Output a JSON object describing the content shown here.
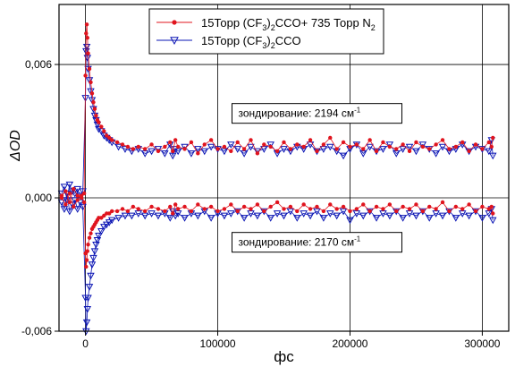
{
  "chart_data": {
    "type": "line",
    "xlabel": "фс",
    "ylabel": "ΔOD",
    "xlim": [
      -20000,
      320000
    ],
    "ylim": [
      -0.006,
      0.0087
    ],
    "x_ticks": [
      0,
      100000,
      200000,
      300000
    ],
    "x_tick_labels": [
      "0",
      "100000",
      "200000",
      "300000"
    ],
    "y_ticks": [
      -0.006,
      0.0,
      0.006
    ],
    "y_tick_labels": [
      "-0,006",
      "0,000",
      "0,006"
    ],
    "grid": true,
    "legend_position": "top-center",
    "legend": [
      {
        "pre": "15Торр (CF",
        "sub1": "3",
        "mid": ")",
        "sub2": "2",
        "post": "CCO+ 735 Торр N",
        "sub3": "2",
        "color": "#e0141e",
        "marker": "circle"
      },
      {
        "pre": "15Торр (CF",
        "sub1": "3",
        "mid": ")",
        "sub2": "2",
        "post": "CCO",
        "sub3": "",
        "color": "#0a14b4",
        "marker": "triangle-down"
      }
    ],
    "annotations": [
      {
        "text": "зондирование: 2194 см",
        "sup": "-1",
        "x": 175000,
        "y": 0.0038
      },
      {
        "text": "зондирование: 2170 см",
        "sup": "-1",
        "x": 175000,
        "y": -0.002
      }
    ],
    "series": [
      {
        "name": "15Торр (CF3)2CCO+ 735 Торр N2, 2194",
        "color": "#e0141e",
        "marker": "circle",
        "x": [
          -18000,
          -15000,
          -12000,
          -9000,
          -6000,
          -3000,
          -1000,
          0,
          500,
          1000,
          1500,
          2000,
          3000,
          4000,
          5000,
          6000,
          7000,
          8000,
          9000,
          10000,
          12000,
          14000,
          16000,
          18000,
          20000,
          24000,
          28000,
          32000,
          36000,
          40000,
          45000,
          50000,
          55000,
          60000,
          64000,
          66000,
          68000,
          70000,
          75000,
          80000,
          85000,
          90000,
          95000,
          100000,
          105000,
          110000,
          115000,
          120000,
          125000,
          130000,
          135000,
          140000,
          145000,
          150000,
          155000,
          160000,
          165000,
          170000,
          175000,
          180000,
          185000,
          190000,
          195000,
          200000,
          205000,
          210000,
          215000,
          220000,
          225000,
          230000,
          235000,
          240000,
          245000,
          250000,
          255000,
          260000,
          265000,
          270000,
          275000,
          280000,
          285000,
          290000,
          295000,
          300000,
          305000,
          307000,
          308000
        ],
        "y": [
          0.0001,
          0.0003,
          -0.0002,
          0.0004,
          0.0001,
          0.0,
          0.0002,
          0.0055,
          0.0074,
          0.0078,
          0.0072,
          0.0065,
          0.0058,
          0.0052,
          0.0047,
          0.0043,
          0.004,
          0.0037,
          0.0035,
          0.0034,
          0.0032,
          0.003,
          0.0028,
          0.0027,
          0.0026,
          0.0025,
          0.0024,
          0.0023,
          0.0022,
          0.0023,
          0.0022,
          0.0024,
          0.0021,
          0.0023,
          0.0025,
          0.0021,
          0.0026,
          0.0023,
          0.0022,
          0.0025,
          0.002,
          0.0024,
          0.0026,
          0.0022,
          0.0023,
          0.0021,
          0.0025,
          0.0022,
          0.0026,
          0.002,
          0.0024,
          0.0023,
          0.0021,
          0.0025,
          0.0022,
          0.0024,
          0.0023,
          0.0026,
          0.0021,
          0.0024,
          0.0027,
          0.0022,
          0.0025,
          0.0023,
          0.0024,
          0.0022,
          0.0026,
          0.0021,
          0.0025,
          0.0023,
          0.0022,
          0.0024,
          0.0021,
          0.0025,
          0.0023,
          0.0022,
          0.0024,
          0.0026,
          0.0022,
          0.0023,
          0.0025,
          0.0021,
          0.0024,
          0.0022,
          0.0025,
          0.0023,
          0.0027
        ]
      },
      {
        "name": "15Торр (CF3)2CCO, 2194",
        "color": "#0a14b4",
        "marker": "triangle-down",
        "x": [
          -18000,
          -16000,
          -14000,
          -12000,
          -10000,
          -8000,
          -6000,
          -4000,
          -2000,
          0,
          500,
          1000,
          1500,
          2000,
          3000,
          4000,
          5000,
          6000,
          7000,
          8000,
          9000,
          10000,
          12000,
          14000,
          16000,
          18000,
          20000,
          25000,
          30000,
          35000,
          40000,
          45000,
          50000,
          55000,
          60000,
          64000,
          66000,
          68000,
          70000,
          75000,
          80000,
          85000,
          90000,
          95000,
          100000,
          105000,
          110000,
          115000,
          120000,
          125000,
          130000,
          135000,
          140000,
          145000,
          150000,
          155000,
          160000,
          165000,
          170000,
          175000,
          180000,
          185000,
          190000,
          195000,
          200000,
          205000,
          210000,
          215000,
          220000,
          225000,
          230000,
          235000,
          240000,
          245000,
          250000,
          255000,
          260000,
          265000,
          270000,
          275000,
          280000,
          285000,
          290000,
          295000,
          300000,
          305000,
          307000,
          308000
        ],
        "y": [
          0.0002,
          0.0005,
          -0.0001,
          0.0006,
          0.0003,
          0.0002,
          0.0004,
          0.0001,
          0.0003,
          0.0045,
          0.0066,
          0.0068,
          0.0063,
          0.0058,
          0.0053,
          0.0048,
          0.0044,
          0.004,
          0.0037,
          0.0035,
          0.0033,
          0.0031,
          0.003,
          0.0028,
          0.0027,
          0.0026,
          0.0025,
          0.0023,
          0.0022,
          0.0021,
          0.0022,
          0.002,
          0.0021,
          0.0022,
          0.002,
          0.0024,
          0.0019,
          0.0022,
          0.0021,
          0.0023,
          0.002,
          0.0022,
          0.0021,
          0.0023,
          0.0022,
          0.0021,
          0.0024,
          0.0022,
          0.002,
          0.0023,
          0.0021,
          0.0022,
          0.0024,
          0.002,
          0.0022,
          0.0021,
          0.0023,
          0.0022,
          0.0024,
          0.0021,
          0.0022,
          0.0023,
          0.0021,
          0.0019,
          0.0022,
          0.0024,
          0.002,
          0.0023,
          0.0021,
          0.0022,
          0.0024,
          0.002,
          0.0022,
          0.0023,
          0.0021,
          0.0024,
          0.0022,
          0.002,
          0.0023,
          0.0021,
          0.0022,
          0.0024,
          0.0021,
          0.0023,
          0.0022,
          0.0021,
          0.0026,
          0.0019
        ]
      },
      {
        "name": "15Торр (CF3)2CCO+ 735 Торр N2, 2170",
        "color": "#e0141e",
        "marker": "circle",
        "x": [
          -18000,
          -15000,
          -12000,
          -9000,
          -6000,
          -3000,
          -1000,
          0,
          500,
          1000,
          1500,
          2000,
          3000,
          4000,
          5000,
          6000,
          7000,
          8000,
          9000,
          10000,
          12000,
          14000,
          16000,
          18000,
          20000,
          24000,
          28000,
          32000,
          36000,
          40000,
          45000,
          50000,
          55000,
          60000,
          64000,
          66000,
          68000,
          70000,
          75000,
          80000,
          85000,
          90000,
          95000,
          100000,
          105000,
          110000,
          115000,
          120000,
          125000,
          130000,
          135000,
          140000,
          145000,
          150000,
          155000,
          160000,
          165000,
          170000,
          175000,
          180000,
          185000,
          190000,
          195000,
          200000,
          205000,
          210000,
          215000,
          220000,
          225000,
          230000,
          235000,
          240000,
          245000,
          250000,
          255000,
          260000,
          265000,
          270000,
          275000,
          280000,
          285000,
          290000,
          295000,
          300000,
          305000,
          307000,
          308000
        ],
        "y": [
          0.0,
          -0.0003,
          0.0002,
          -0.0004,
          -0.0001,
          0.0001,
          -0.0002,
          -0.0025,
          -0.0031,
          -0.0028,
          -0.0024,
          -0.0021,
          -0.0018,
          -0.0016,
          -0.0014,
          -0.0013,
          -0.0012,
          -0.0011,
          -0.001,
          -0.0009,
          -0.0009,
          -0.0008,
          -0.0007,
          -0.0007,
          -0.0006,
          -0.0006,
          -0.0005,
          -0.0006,
          -0.0004,
          -0.0005,
          -0.0006,
          -0.0004,
          -0.0005,
          -0.0006,
          -0.0004,
          -0.0007,
          -0.0003,
          -0.0005,
          -0.0004,
          -0.0006,
          -0.0003,
          -0.0005,
          -0.0004,
          -0.0006,
          -0.0005,
          -0.0003,
          -0.0006,
          -0.0004,
          -0.0005,
          -0.0003,
          -0.0006,
          -0.0004,
          -0.0002,
          -0.0005,
          -0.0004,
          -0.0006,
          -0.0003,
          -0.0005,
          -0.0004,
          -0.0006,
          -0.0003,
          -0.0005,
          -0.0004,
          -0.0006,
          -0.0005,
          -0.0003,
          -0.0006,
          -0.0004,
          -0.0005,
          -0.0003,
          -0.0006,
          -0.0004,
          -0.0005,
          -0.0003,
          -0.0006,
          -0.0004,
          -0.0005,
          -0.0002,
          -0.0006,
          -0.0004,
          -0.0005,
          -0.0003,
          -0.0006,
          -0.0004,
          -0.0005,
          -0.0004,
          -0.0007
        ]
      },
      {
        "name": "15Торр (CF3)2CCO, 2170",
        "color": "#0a14b4",
        "marker": "triangle-down",
        "x": [
          -18000,
          -16000,
          -14000,
          -12000,
          -10000,
          -8000,
          -6000,
          -4000,
          -2000,
          0,
          500,
          1000,
          1500,
          2000,
          3000,
          4000,
          5000,
          6000,
          7000,
          8000,
          9000,
          10000,
          12000,
          14000,
          16000,
          18000,
          20000,
          25000,
          30000,
          35000,
          40000,
          45000,
          50000,
          55000,
          60000,
          64000,
          66000,
          68000,
          70000,
          75000,
          80000,
          85000,
          90000,
          95000,
          100000,
          105000,
          110000,
          115000,
          120000,
          125000,
          130000,
          135000,
          140000,
          145000,
          150000,
          155000,
          160000,
          165000,
          170000,
          175000,
          180000,
          185000,
          190000,
          195000,
          200000,
          205000,
          210000,
          215000,
          220000,
          225000,
          230000,
          235000,
          240000,
          245000,
          250000,
          255000,
          260000,
          265000,
          270000,
          275000,
          280000,
          285000,
          290000,
          295000,
          300000,
          305000,
          307000,
          308000
        ],
        "y": [
          -0.0002,
          -0.0005,
          0.0002,
          -0.0006,
          -0.0003,
          -0.0001,
          -0.0005,
          -0.0002,
          -0.0004,
          -0.0045,
          -0.006,
          -0.0056,
          -0.005,
          -0.0045,
          -0.004,
          -0.0035,
          -0.003,
          -0.0027,
          -0.0024,
          -0.0021,
          -0.0019,
          -0.0017,
          -0.0015,
          -0.0013,
          -0.0012,
          -0.0011,
          -0.001,
          -0.0009,
          -0.0008,
          -0.0008,
          -0.0007,
          -0.0008,
          -0.0007,
          -0.0008,
          -0.0007,
          -0.0009,
          -0.0006,
          -0.0008,
          -0.0007,
          -0.0009,
          -0.0007,
          -0.0008,
          -0.0006,
          -0.0009,
          -0.0007,
          -0.0008,
          -0.0007,
          -0.0006,
          -0.0009,
          -0.0007,
          -0.0008,
          -0.0006,
          -0.0009,
          -0.0007,
          -0.0008,
          -0.0006,
          -0.0009,
          -0.0007,
          -0.0008,
          -0.0006,
          -0.0009,
          -0.0007,
          -0.0008,
          -0.0006,
          -0.001,
          -0.0007,
          -0.0008,
          -0.0006,
          -0.0009,
          -0.0007,
          -0.0008,
          -0.0006,
          -0.0009,
          -0.0007,
          -0.0008,
          -0.0006,
          -0.0009,
          -0.0007,
          -0.0008,
          -0.0006,
          -0.0009,
          -0.0007,
          -0.0008,
          -0.0006,
          -0.0009,
          -0.0007,
          -0.0005,
          -0.001
        ]
      }
    ]
  }
}
